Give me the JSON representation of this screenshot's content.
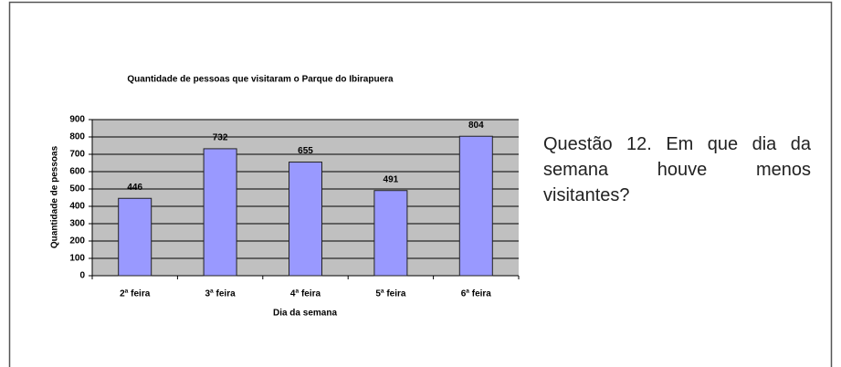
{
  "chart_data": {
    "type": "bar",
    "title": "Quantidade de pessoas que visitaram o Parque do Ibirapuera",
    "x_label": "Dia da semana",
    "y_label": "Quantidade de pessoas",
    "categories": [
      "2ª feira",
      "3ª feira",
      "4ª feira",
      "5ª feira",
      "6ª feira"
    ],
    "values": [
      446,
      732,
      655,
      491,
      804
    ],
    "color": "#9999ff",
    "ylim": [
      0,
      900
    ],
    "yticks": [
      0,
      100,
      200,
      300,
      400,
      500,
      600,
      700,
      800,
      900
    ],
    "grid": true,
    "data_labels": true
  },
  "question": "Questão 12. Em que dia da semana houve menos visitantes?"
}
